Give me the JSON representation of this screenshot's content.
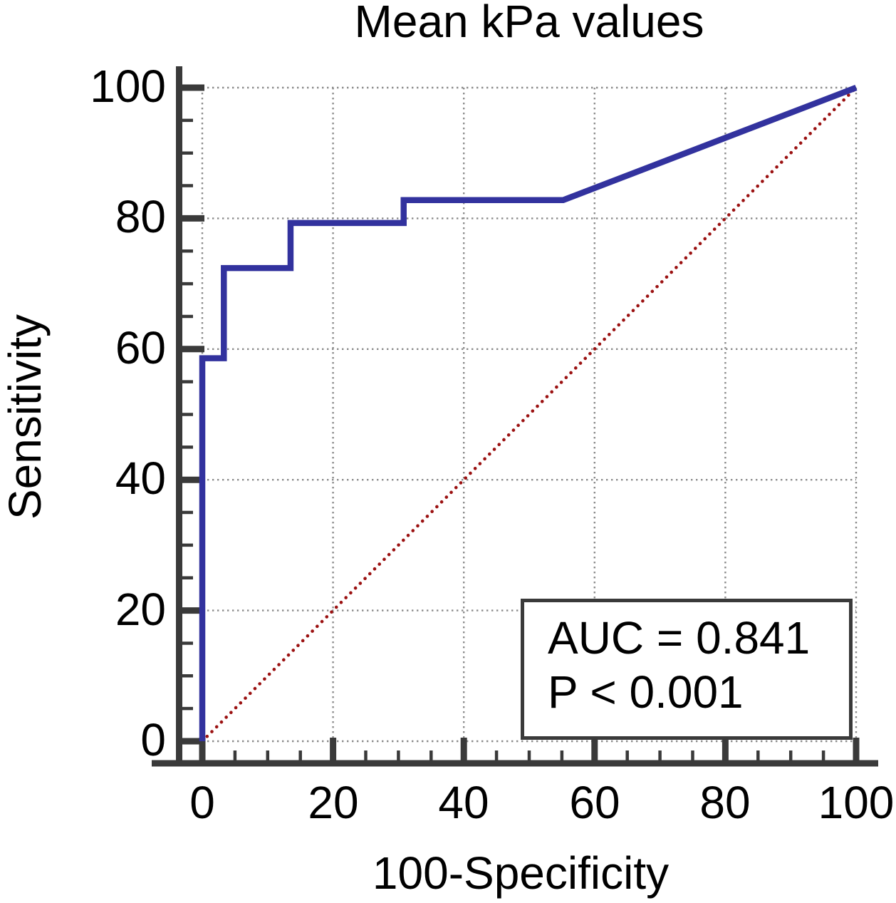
{
  "chart_data": {
    "type": "line",
    "title": "Mean kPa values",
    "xlabel": "100-Specificity",
    "ylabel": "Sensitivity",
    "xlim": [
      0,
      100
    ],
    "ylim": [
      0,
      100
    ],
    "x_ticks": [
      0,
      20,
      40,
      60,
      80,
      100
    ],
    "y_ticks": [
      0,
      20,
      40,
      60,
      80,
      100
    ],
    "x_tick_labels": [
      "0",
      "20",
      "40",
      "60",
      "80",
      "100"
    ],
    "y_tick_labels": [
      "0",
      "20",
      "40",
      "60",
      "80",
      "100"
    ],
    "minor_tick_step": 5,
    "grid": {
      "style": "dotted",
      "color": "#8a8a8a"
    },
    "axis_color": "#3a3a3a",
    "legend_position": "none",
    "series": [
      {
        "name": "ROC curve (Mean kPa values)",
        "type": "step-line",
        "color": "#32329e",
        "points": [
          [
            0,
            0
          ],
          [
            0,
            58.6
          ],
          [
            3.3,
            58.6
          ],
          [
            3.3,
            72.4
          ],
          [
            13.5,
            72.4
          ],
          [
            13.5,
            79.3
          ],
          [
            30.8,
            79.3
          ],
          [
            30.8,
            82.8
          ],
          [
            55.2,
            82.8
          ],
          [
            100,
            100
          ]
        ]
      },
      {
        "name": "Reference diagonal",
        "type": "dotted-line",
        "color": "#9b1111",
        "points": [
          [
            0,
            0
          ],
          [
            100,
            100
          ]
        ]
      }
    ],
    "annotation": {
      "line1": "AUC = 0.841",
      "line2": "P < 0.001"
    }
  }
}
